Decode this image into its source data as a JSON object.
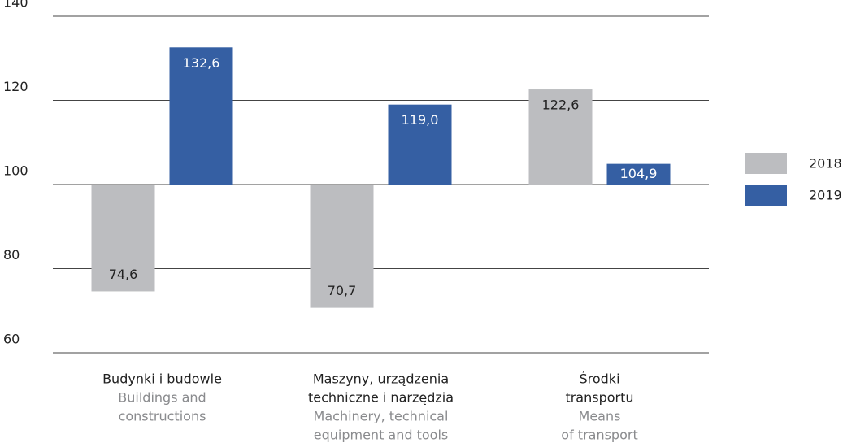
{
  "chart_data": {
    "type": "bar",
    "categories": [
      [
        "Budynki i budowle"
      ],
      [
        "Maszyny, urządzenia",
        "techniczne i narzędzia"
      ],
      [
        "Środki",
        "transportu"
      ]
    ],
    "category_translations": [
      [
        "Buildings and",
        "constructions"
      ],
      [
        "Machinery, technical",
        "equipment and tools"
      ],
      [
        "Means",
        "of transport"
      ]
    ],
    "series": [
      {
        "name": "2018",
        "color": "#bcbdc0",
        "values": [
          74.6,
          70.7,
          122.6
        ],
        "value_labels": [
          "74,6",
          "70,7",
          "122,6"
        ]
      },
      {
        "name": "2019",
        "color": "#355fa3",
        "values": [
          132.6,
          119.0,
          104.9
        ],
        "value_labels": [
          "132,6",
          "119,0",
          "104,9"
        ]
      }
    ],
    "baseline": 100,
    "ylim": [
      60,
      140
    ],
    "yticks": [
      60,
      80,
      100,
      120,
      140
    ],
    "grid": true,
    "legend": "right"
  }
}
